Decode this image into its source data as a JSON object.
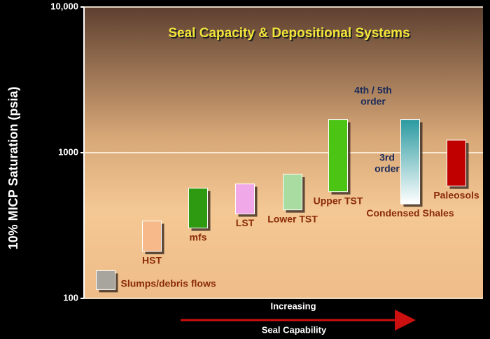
{
  "chart_data": {
    "type": "floating-bar",
    "title": "Seal Capacity & Depositional Systems",
    "y_label": "10% MICP Saturation (psia)",
    "x_label": "Increasing",
    "x_arrow_label": "Seal Capability",
    "y_scale": "log",
    "ylim": [
      100,
      10000
    ],
    "yticks": [
      100,
      1000,
      {
        "value": 10000,
        "label": "10,000"
      }
    ],
    "grid": true,
    "categories": [
      "Slumps/debris flows",
      "HST",
      "mfs",
      "LST",
      "Lower TST",
      "Upper TST",
      "Condensed Shales",
      "Paleosols"
    ],
    "low": [
      115,
      210,
      304,
      380,
      405,
      540,
      445,
      590
    ],
    "high": [
      155,
      340,
      570,
      610,
      710,
      1690,
      1690,
      1220
    ],
    "colors": [
      "#a8a49e",
      "#f7b98a",
      "#2e9a12",
      "#f0a8e8",
      "#a8dca0",
      "#4cc414",
      {
        "from": "#2a9aa0",
        "to": "#ffffff"
      },
      "#c00000"
    ],
    "annotations": [
      [
        "4th / 5th",
        "order"
      ],
      [
        "3rd",
        "order"
      ]
    ]
  }
}
